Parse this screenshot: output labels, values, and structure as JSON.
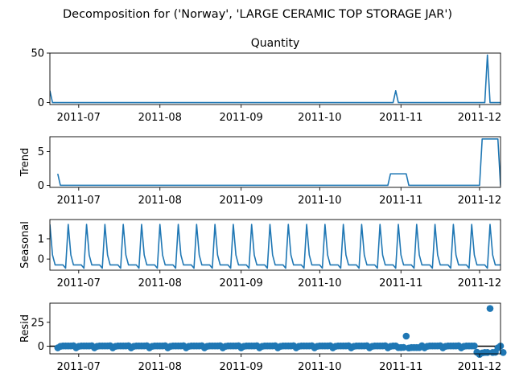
{
  "figure": {
    "title": "Decomposition for ('Norway', 'LARGE CERAMIC TOP STORAGE JAR')"
  },
  "chart_data": {
    "type": "line",
    "x_start": "2011-06-20",
    "x_end": "2011-12-09",
    "xticks": [
      "2011-07",
      "2011-08",
      "2011-09",
      "2011-10",
      "2011-11",
      "2011-12"
    ],
    "xtick_dates": [
      "2011-07-01",
      "2011-08-01",
      "2011-09-01",
      "2011-10-01",
      "2011-11-01",
      "2011-12-01"
    ],
    "panels": [
      {
        "name": "observed",
        "title": "Quantity",
        "ylabel": "",
        "mark": "line",
        "ylim": [
          -2,
          50
        ],
        "yticks": [
          0,
          50
        ],
        "values": [
          12,
          0,
          0,
          0,
          0,
          0,
          0,
          0,
          0,
          0,
          0,
          0,
          0,
          0,
          0,
          0,
          0,
          0,
          0,
          0,
          0,
          0,
          0,
          0,
          0,
          0,
          0,
          0,
          0,
          0,
          0,
          0,
          0,
          0,
          0,
          0,
          0,
          0,
          0,
          0,
          0,
          0,
          0,
          0,
          0,
          0,
          0,
          0,
          0,
          0,
          0,
          0,
          0,
          0,
          0,
          0,
          0,
          0,
          0,
          0,
          0,
          0,
          0,
          0,
          0,
          0,
          0,
          0,
          0,
          0,
          0,
          0,
          0,
          0,
          0,
          0,
          0,
          0,
          0,
          0,
          0,
          0,
          0,
          0,
          0,
          0,
          0,
          0,
          0,
          0,
          0,
          0,
          0,
          0,
          0,
          0,
          0,
          0,
          0,
          0,
          0,
          0,
          0,
          0,
          0,
          0,
          0,
          0,
          0,
          0,
          0,
          0,
          0,
          0,
          0,
          0,
          0,
          0,
          0,
          0,
          0,
          0,
          0,
          0,
          0,
          0,
          0,
          0,
          0,
          0,
          0,
          0,
          12,
          0,
          0,
          0,
          0,
          0,
          0,
          0,
          0,
          0,
          0,
          0,
          0,
          0,
          0,
          0,
          0,
          0,
          0,
          0,
          0,
          0,
          0,
          0,
          0,
          0,
          0,
          0,
          0,
          0,
          0,
          0,
          0,
          0,
          0,
          48,
          0,
          0,
          0,
          0,
          0,
          0,
          0,
          48
        ]
      },
      {
        "name": "trend",
        "title": "",
        "ylabel": "Trend",
        "mark": "line",
        "ylim": [
          -0.3,
          7.2
        ],
        "yticks": [
          0,
          5
        ],
        "values": [
          null,
          null,
          null,
          1.71,
          0,
          0,
          0,
          0,
          0,
          0,
          0,
          0,
          0,
          0,
          0,
          0,
          0,
          0,
          0,
          0,
          0,
          0,
          0,
          0,
          0,
          0,
          0,
          0,
          0,
          0,
          0,
          0,
          0,
          0,
          0,
          0,
          0,
          0,
          0,
          0,
          0,
          0,
          0,
          0,
          0,
          0,
          0,
          0,
          0,
          0,
          0,
          0,
          0,
          0,
          0,
          0,
          0,
          0,
          0,
          0,
          0,
          0,
          0,
          0,
          0,
          0,
          0,
          0,
          0,
          0,
          0,
          0,
          0,
          0,
          0,
          0,
          0,
          0,
          0,
          0,
          0,
          0,
          0,
          0,
          0,
          0,
          0,
          0,
          0,
          0,
          0,
          0,
          0,
          0,
          0,
          0,
          0,
          0,
          0,
          0,
          0,
          0,
          0,
          0,
          0,
          0,
          0,
          0,
          0,
          0,
          0,
          0,
          0,
          0,
          0,
          0,
          0,
          0,
          0,
          0,
          0,
          0,
          0,
          0,
          0,
          0,
          0,
          0,
          0,
          0,
          1.71,
          1.71,
          1.71,
          1.71,
          1.71,
          1.71,
          1.71,
          0,
          0,
          0,
          0,
          0,
          0,
          0,
          0,
          0,
          0,
          0,
          0,
          0,
          0,
          0,
          0,
          0,
          0,
          0,
          0,
          0,
          0,
          0,
          0,
          0,
          0,
          0,
          0,
          6.86,
          6.86,
          6.86,
          6.86,
          6.86,
          6.86,
          6.86,
          0,
          0,
          6.86,
          null,
          null,
          null
        ]
      },
      {
        "name": "seasonal",
        "title": "",
        "ylabel": "Seasonal",
        "mark": "line",
        "ylim": [
          -0.55,
          1.95
        ],
        "yticks": [
          0,
          1
        ],
        "weekly_pattern": [
          1.71,
          0.2,
          -0.29,
          -0.29,
          -0.29,
          -0.29,
          -0.45
        ],
        "pattern_phase": 0
      },
      {
        "name": "resid",
        "title": "",
        "ylabel": "Resid",
        "mark": "scatter",
        "ylim": [
          -8,
          45
        ],
        "yticks": [
          0,
          25
        ],
        "values": [
          null,
          null,
          null,
          -1.71,
          -0.2,
          0.29,
          0.29,
          0.29,
          0.29,
          0.45,
          -1.71,
          -0.2,
          0.29,
          0.29,
          0.29,
          0.29,
          0.45,
          -1.71,
          -0.2,
          0.29,
          0.29,
          0.29,
          0.29,
          0.45,
          -1.71,
          -0.2,
          0.29,
          0.29,
          0.29,
          0.29,
          0.45,
          -1.71,
          -0.2,
          0.29,
          0.29,
          0.29,
          0.29,
          0.45,
          -1.71,
          -0.2,
          0.29,
          0.29,
          0.29,
          0.29,
          0.45,
          -1.71,
          -0.2,
          0.29,
          0.29,
          0.29,
          0.29,
          0.45,
          -1.71,
          -0.2,
          0.29,
          0.29,
          0.29,
          0.29,
          0.45,
          -1.71,
          -0.2,
          0.29,
          0.29,
          0.29,
          0.29,
          0.45,
          -1.71,
          -0.2,
          0.29,
          0.29,
          0.29,
          0.29,
          0.45,
          -1.71,
          -0.2,
          0.29,
          0.29,
          0.29,
          0.29,
          0.45,
          -1.71,
          -0.2,
          0.29,
          0.29,
          0.29,
          0.29,
          0.45,
          -1.71,
          -0.2,
          0.29,
          0.29,
          0.29,
          0.29,
          0.45,
          -1.71,
          -0.2,
          0.29,
          0.29,
          0.29,
          0.29,
          0.45,
          -1.71,
          -0.2,
          0.29,
          0.29,
          0.29,
          0.29,
          0.45,
          -1.71,
          -0.2,
          0.29,
          0.29,
          0.29,
          0.29,
          0.45,
          -1.71,
          -0.2,
          0.29,
          0.29,
          0.29,
          0.29,
          0.45,
          -1.71,
          -0.2,
          0.29,
          0.29,
          0.29,
          0.29,
          0.45,
          -1.71,
          -0.2,
          0.29,
          0.29,
          -1.42,
          -1.42,
          -1.26,
          10.5,
          -1.91,
          -1.42,
          -1.42,
          -1.42,
          -1.42,
          0.45,
          -1.71,
          -0.2,
          0.29,
          0.29,
          0.29,
          0.29,
          0.45,
          -1.71,
          -0.2,
          0.29,
          0.29,
          0.29,
          0.29,
          0.45,
          -1.71,
          -0.2,
          0.29,
          0.29,
          0.29,
          0.29,
          -6.4,
          -8.57,
          -7.06,
          -6.57,
          -6.57,
          39.43,
          -6.57,
          -6.41,
          -1.71,
          0.2,
          -6.57,
          null,
          null,
          null
        ]
      }
    ]
  }
}
